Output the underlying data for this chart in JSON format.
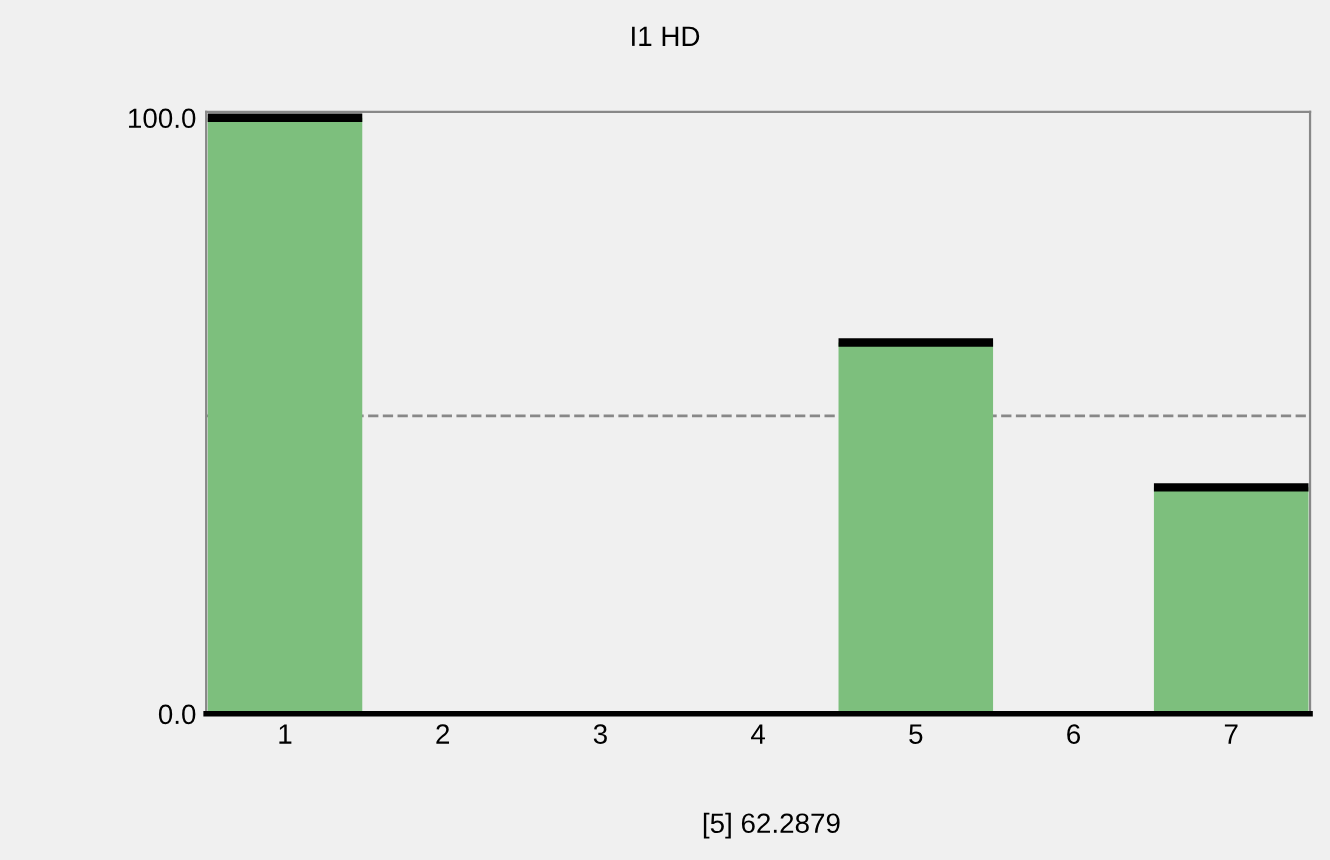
{
  "chart_data": {
    "type": "bar",
    "title": "I1 HD",
    "categories": [
      "1",
      "2",
      "3",
      "4",
      "5",
      "6",
      "7"
    ],
    "values": [
      100,
      0,
      0,
      0,
      62.2879,
      0,
      38
    ],
    "color": "#7dbf7d",
    "ylim": [
      0,
      101
    ],
    "yticks": [
      {
        "value": 0,
        "label": "0.0"
      },
      {
        "value": 100,
        "label": "100.0"
      }
    ],
    "ref_lines": [
      {
        "axis": "y",
        "value": 50,
        "color": "#888888",
        "line_style": "dashed"
      }
    ],
    "annotations": [
      "[5] 62.2879"
    ],
    "grid": false,
    "legend": false
  }
}
